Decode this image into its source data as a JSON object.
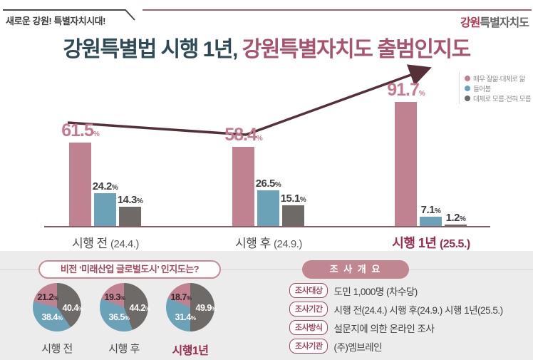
{
  "header": {
    "slogan": "새로운 강원! 특별자치시대!",
    "logo_accent": "강원",
    "logo_rest": "특별자치도",
    "title_dark": "강원특별법 시행 1년, ",
    "title_accent": "강원특별자치도 출범인지도"
  },
  "colors": {
    "pink": "#c08290",
    "pink_label": "#c5798e",
    "blue": "#6ba2b8",
    "gray": "#6e6a68",
    "arrow": "#553039",
    "accent_maroon": "#a8536b",
    "deco_dark": "#4a4a4a",
    "baseline": "#8f5862",
    "bottom_bg": "#ececec"
  },
  "chart_data": [
    {
      "type": "bar",
      "title": "강원특별법 시행 1년, 강원특별자치도 출범인지도",
      "categories": [
        "시행 전",
        "시행 후",
        "시행 1년"
      ],
      "category_subs": [
        "(24.4.)",
        "(24.9.)",
        "(25.5.)"
      ],
      "highlight_category": "시행 1년 (25.5.)",
      "series": [
        {
          "name": "매우 잘앎·대체로 앎",
          "color": "#c08290",
          "values": [
            61.5,
            58.4,
            91.7
          ]
        },
        {
          "name": "들어봄",
          "color": "#6ba2b8",
          "values": [
            24.2,
            26.5,
            7.1
          ]
        },
        {
          "name": "대체로 모름·전혀 모름",
          "color": "#6e6a68",
          "values": [
            14.3,
            15.1,
            1.2
          ]
        }
      ],
      "unit": "%",
      "ylim": [
        0,
        100
      ],
      "grid": false,
      "legend_position": "top-right",
      "annotations": [
        "upward trend arrow from 시행 전 to 시행 1년"
      ]
    },
    {
      "type": "pie",
      "title": "비전 ‘미래산업 글로벌도시’ 인지도는?",
      "slice_names": [
        "매우 잘앎·대체로 앎",
        "들어봄",
        "대체로 모름·전혀 모름"
      ],
      "pies": [
        {
          "label": "시행 전",
          "highlight": false,
          "values": [
            21.2,
            38.4,
            40.4
          ]
        },
        {
          "label": "시행 후",
          "highlight": false,
          "values": [
            19.3,
            36.5,
            44.2
          ]
        },
        {
          "label": "시행1년",
          "highlight": true,
          "values": [
            18.7,
            31.4,
            49.9
          ]
        }
      ],
      "unit": "%"
    }
  ],
  "survey": {
    "title": "조 사 개 요",
    "rows": [
      {
        "label": "조사대상",
        "value": "도민 1,000명 (차수당)"
      },
      {
        "label": "조사기간",
        "value": "시행 전(24.4.) 시행 후(24.9.) 시행 1년(25.5.)"
      },
      {
        "label": "조사방식",
        "value": "설문지에 의한 온라인 조사"
      },
      {
        "label": "조사기관",
        "value": "(주)엠브레인"
      }
    ]
  },
  "vision_title": "비전 ‘미래산업 글로벌도시’ 인지도는?"
}
